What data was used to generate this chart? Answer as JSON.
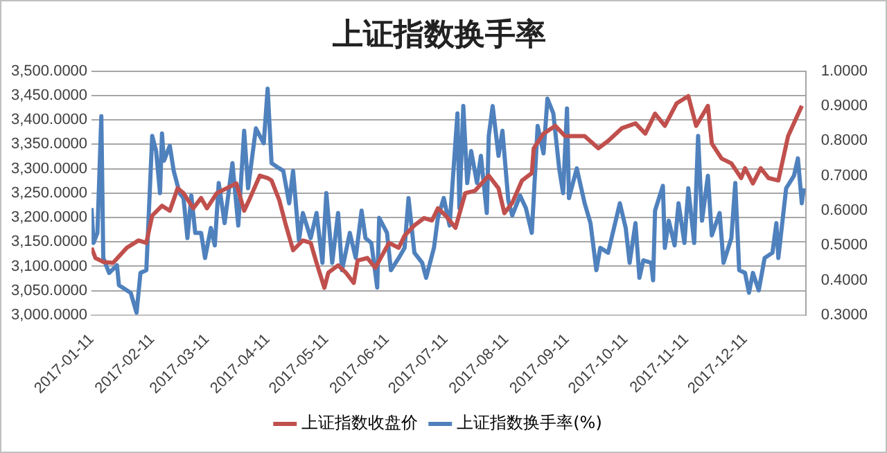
{
  "chart_data": {
    "type": "line",
    "title": "上证指数换手率",
    "xlim": [
      "2017-01-11",
      "2018-01-11"
    ],
    "xticks": [
      {
        "value": "2017-01-11",
        "label": "2017-01-11"
      },
      {
        "value": "2017-02-11",
        "label": "2017-02-11"
      },
      {
        "value": "2017-03-11",
        "label": "2017-03-11"
      },
      {
        "value": "2017-04-11",
        "label": "2017-04-11"
      },
      {
        "value": "2017-05-11",
        "label": "2017-05-11"
      },
      {
        "value": "2017-06-11",
        "label": "2017-06-11"
      },
      {
        "value": "2017-07-11",
        "label": "2017-07-11"
      },
      {
        "value": "2017-08-11",
        "label": "2017-08-11"
      },
      {
        "value": "2017-09-11",
        "label": "2017-09-11"
      },
      {
        "value": "2017-10-11",
        "label": "2017-10-11"
      },
      {
        "value": "2017-11-11",
        "label": "2017-11-11"
      },
      {
        "value": "2017-12-11",
        "label": "2017-12-11"
      }
    ],
    "ylim": [
      3000,
      3500
    ],
    "yticks": [
      {
        "value": 3000,
        "label": "3,000.0000"
      },
      {
        "value": 3050,
        "label": "3,050.0000"
      },
      {
        "value": 3100,
        "label": "3,100.0000"
      },
      {
        "value": 3150,
        "label": "3,150.0000"
      },
      {
        "value": 3200,
        "label": "3,200.0000"
      },
      {
        "value": 3250,
        "label": "3,250.0000"
      },
      {
        "value": 3300,
        "label": "3,300.0000"
      },
      {
        "value": 3350,
        "label": "3,350.0000"
      },
      {
        "value": 3400,
        "label": "3,400.0000"
      },
      {
        "value": 3450,
        "label": "3,450.0000"
      },
      {
        "value": 3500,
        "label": "3,500.0000"
      }
    ],
    "y2lim": [
      0.3,
      1.0
    ],
    "y2ticks": [
      {
        "value": 0.3,
        "label": "0.3000"
      },
      {
        "value": 0.4,
        "label": "0.4000"
      },
      {
        "value": 0.5,
        "label": "0.5000"
      },
      {
        "value": 0.6,
        "label": "0.6000"
      },
      {
        "value": 0.7,
        "label": "0.7000"
      },
      {
        "value": 0.8,
        "label": "0.8000"
      },
      {
        "value": 0.9,
        "label": "0.9000"
      },
      {
        "value": 1.0,
        "label": "1.0000"
      }
    ],
    "grid": "y",
    "legend": "bottom",
    "marker": "none",
    "line_style": "solid",
    "series": [
      {
        "name": "上证指数收盘价",
        "color": "#c0504d",
        "axis": "y",
        "x": [
          "2017-01-11",
          "2017-01-13",
          "2017-01-17",
          "2017-01-22",
          "2017-01-29",
          "2017-02-04",
          "2017-02-08",
          "2017-02-11",
          "2017-02-16",
          "2017-02-20",
          "2017-02-24",
          "2017-02-27",
          "2017-03-04",
          "2017-03-08",
          "2017-03-11",
          "2017-03-16",
          "2017-03-21",
          "2017-03-26",
          "2017-03-30",
          "2017-04-02",
          "2017-04-07",
          "2017-04-11",
          "2017-04-13",
          "2017-04-17",
          "2017-04-20",
          "2017-04-24",
          "2017-04-29",
          "2017-05-03",
          "2017-05-06",
          "2017-05-10",
          "2017-05-12",
          "2017-05-17",
          "2017-05-21",
          "2017-05-25",
          "2017-05-27",
          "2017-06-01",
          "2017-06-05",
          "2017-06-12",
          "2017-06-17",
          "2017-06-20",
          "2017-06-25",
          "2017-06-30",
          "2017-07-04",
          "2017-07-07",
          "2017-07-11",
          "2017-07-16",
          "2017-07-21",
          "2017-07-26",
          "2017-08-02",
          "2017-08-07",
          "2017-08-10",
          "2017-08-14",
          "2017-08-19",
          "2017-08-24",
          "2017-08-25",
          "2017-08-30",
          "2017-09-05",
          "2017-09-10",
          "2017-09-20",
          "2017-09-27",
          "2017-10-02",
          "2017-10-09",
          "2017-10-16",
          "2017-10-21",
          "2017-10-26",
          "2017-10-31",
          "2017-11-06",
          "2017-11-12",
          "2017-11-16",
          "2017-11-22",
          "2017-11-24",
          "2017-11-29",
          "2017-12-04",
          "2017-12-09",
          "2017-12-11",
          "2017-12-15",
          "2017-12-19",
          "2017-12-23",
          "2017-12-28",
          "2018-01-02",
          "2018-01-09"
        ],
        "values": [
          3138,
          3117,
          3109,
          3107,
          3138,
          3153,
          3148,
          3204,
          3224,
          3214,
          3260,
          3250,
          3219,
          3240,
          3219,
          3250,
          3260,
          3270,
          3214,
          3240,
          3286,
          3281,
          3276,
          3235,
          3189,
          3133,
          3153,
          3148,
          3107,
          3056,
          3087,
          3102,
          3087,
          3066,
          3112,
          3117,
          3097,
          3148,
          3138,
          3163,
          3184,
          3199,
          3194,
          3219,
          3204,
          3179,
          3250,
          3255,
          3286,
          3260,
          3209,
          3230,
          3276,
          3291,
          3342,
          3372,
          3388,
          3367,
          3367,
          3342,
          3357,
          3383,
          3393,
          3372,
          3413,
          3388,
          3434,
          3449,
          3388,
          3429,
          3352,
          3321,
          3311,
          3281,
          3301,
          3270,
          3301,
          3281,
          3276,
          3367,
          3429
        ]
      },
      {
        "name": "上证指数换手率(%)",
        "color": "#4f81bd",
        "axis": "y2",
        "x": [
          "2017-01-11",
          "2017-01-12",
          "2017-01-14",
          "2017-01-16",
          "2017-01-17",
          "2017-01-20",
          "2017-01-24",
          "2017-01-25",
          "2017-01-31",
          "2017-02-03",
          "2017-02-05",
          "2017-02-08",
          "2017-02-11",
          "2017-02-13",
          "2017-02-15",
          "2017-02-16",
          "2017-02-17",
          "2017-02-20",
          "2017-02-22",
          "2017-02-25",
          "2017-02-27",
          "2017-03-01",
          "2017-03-03",
          "2017-03-05",
          "2017-03-08",
          "2017-03-10",
          "2017-03-13",
          "2017-03-15",
          "2017-03-17",
          "2017-03-20",
          "2017-03-24",
          "2017-03-27",
          "2017-03-30",
          "2017-04-01",
          "2017-04-05",
          "2017-04-09",
          "2017-04-11",
          "2017-04-13",
          "2017-04-17",
          "2017-04-19",
          "2017-04-22",
          "2017-04-24",
          "2017-04-27",
          "2017-04-29",
          "2017-05-03",
          "2017-05-06",
          "2017-05-09",
          "2017-05-11",
          "2017-05-14",
          "2017-05-17",
          "2017-05-19",
          "2017-05-23",
          "2017-05-26",
          "2017-05-29",
          "2017-05-31",
          "2017-06-03",
          "2017-06-06",
          "2017-06-07",
          "2017-06-11",
          "2017-06-13",
          "2017-06-17",
          "2017-06-20",
          "2017-06-22",
          "2017-06-25",
          "2017-06-29",
          "2017-07-01",
          "2017-07-05",
          "2017-07-07",
          "2017-07-10",
          "2017-07-13",
          "2017-07-17",
          "2017-07-18",
          "2017-07-20",
          "2017-07-22",
          "2017-07-24",
          "2017-07-27",
          "2017-07-29",
          "2017-08-01",
          "2017-08-02",
          "2017-08-04",
          "2017-08-07",
          "2017-08-09",
          "2017-08-12",
          "2017-08-14",
          "2017-08-18",
          "2017-08-21",
          "2017-08-24",
          "2017-08-27",
          "2017-08-30",
          "2017-09-01",
          "2017-09-04",
          "2017-09-07",
          "2017-09-09",
          "2017-09-11",
          "2017-09-12",
          "2017-09-16",
          "2017-09-20",
          "2017-09-23",
          "2017-09-26",
          "2017-09-28",
          "2017-10-02",
          "2017-10-08",
          "2017-10-11",
          "2017-10-13",
          "2017-10-16",
          "2017-10-18",
          "2017-10-20",
          "2017-10-24",
          "2017-10-25",
          "2017-10-26",
          "2017-10-30",
          "2017-10-31",
          "2017-11-02",
          "2017-11-05",
          "2017-11-07",
          "2017-11-10",
          "2017-11-12",
          "2017-11-15",
          "2017-11-17",
          "2017-11-19",
          "2017-11-22",
          "2017-11-24",
          "2017-11-28",
          "2017-11-30",
          "2017-12-04",
          "2017-12-06",
          "2017-12-08",
          "2017-12-11",
          "2017-12-13",
          "2017-12-15",
          "2017-12-18",
          "2017-12-21",
          "2017-12-25",
          "2017-12-27",
          "2017-12-28",
          "2018-01-01",
          "2018-01-05",
          "2018-01-07",
          "2018-01-09",
          "2018-01-10"
        ],
        "values": [
          0.607,
          0.507,
          0.536,
          0.871,
          0.464,
          0.421,
          0.443,
          0.386,
          0.364,
          0.307,
          0.421,
          0.429,
          0.814,
          0.771,
          0.65,
          0.821,
          0.743,
          0.786,
          0.714,
          0.65,
          0.636,
          0.521,
          0.643,
          0.536,
          0.536,
          0.464,
          0.55,
          0.5,
          0.679,
          0.564,
          0.736,
          0.557,
          0.829,
          0.664,
          0.836,
          0.793,
          0.95,
          0.736,
          0.721,
          0.714,
          0.621,
          0.714,
          0.514,
          0.593,
          0.521,
          0.593,
          0.45,
          0.65,
          0.45,
          0.593,
          0.429,
          0.536,
          0.464,
          0.6,
          0.521,
          0.507,
          0.379,
          0.579,
          0.536,
          0.429,
          0.464,
          0.493,
          0.636,
          0.479,
          0.45,
          0.407,
          0.493,
          0.579,
          0.636,
          0.557,
          0.879,
          0.607,
          0.9,
          0.679,
          0.771,
          0.679,
          0.757,
          0.593,
          0.814,
          0.9,
          0.757,
          0.829,
          0.629,
          0.586,
          0.643,
          0.607,
          0.536,
          0.843,
          0.764,
          0.921,
          0.879,
          0.721,
          0.65,
          0.893,
          0.636,
          0.721,
          0.621,
          0.564,
          0.429,
          0.493,
          0.479,
          0.621,
          0.55,
          0.45,
          0.564,
          0.407,
          0.457,
          0.45,
          0.4,
          0.6,
          0.671,
          0.493,
          0.571,
          0.5,
          0.621,
          0.507,
          0.664,
          0.507,
          0.814,
          0.571,
          0.7,
          0.529,
          0.593,
          0.45,
          0.521,
          0.679,
          0.429,
          0.421,
          0.364,
          0.421,
          0.371,
          0.464,
          0.479,
          0.564,
          0.464,
          0.664,
          0.7,
          0.75,
          0.621,
          0.664
        ]
      }
    ]
  }
}
